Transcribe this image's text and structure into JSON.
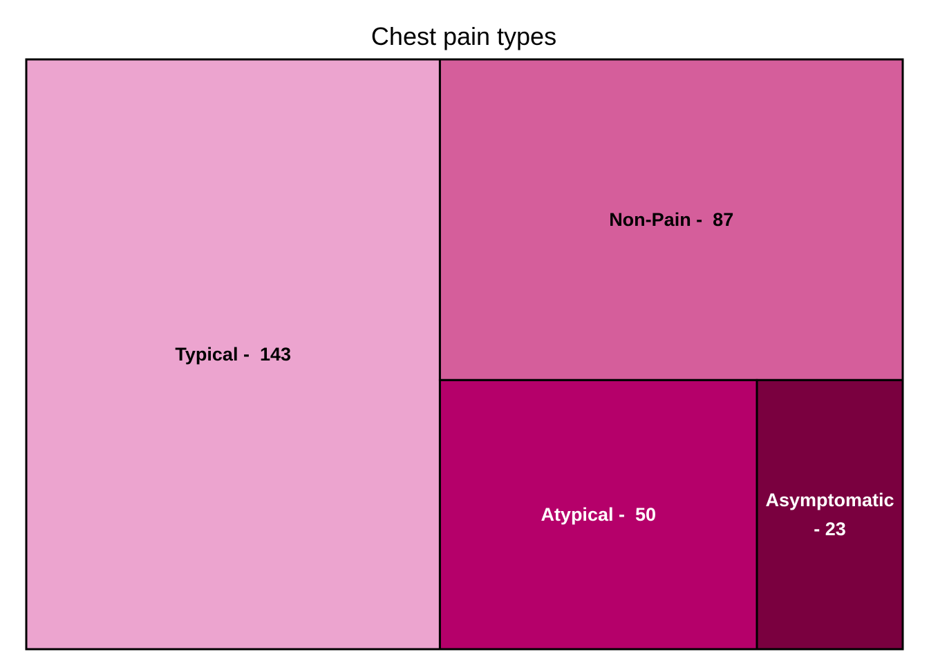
{
  "chart_data": {
    "type": "treemap",
    "title": "Chest pain types",
    "items": [
      {
        "name": "Typical",
        "value": 143,
        "color": "#ECA4CF",
        "label_color": "#000000",
        "label_lines": [
          "Typical -  143"
        ]
      },
      {
        "name": "Non-Pain",
        "value": 87,
        "color": "#D55E9B",
        "label_color": "#000000",
        "label_lines": [
          "Non-Pain -  87"
        ]
      },
      {
        "name": "Atypical",
        "value": 50,
        "color": "#B5006A",
        "label_color": "#FFFFFF",
        "label_lines": [
          "Atypical -  50"
        ]
      },
      {
        "name": "Asymptomatic",
        "value": 23,
        "color": "#7A003F",
        "label_color": "#FFFFFF",
        "label_lines": [
          "Asymptomatic",
          "- 23"
        ]
      }
    ]
  }
}
